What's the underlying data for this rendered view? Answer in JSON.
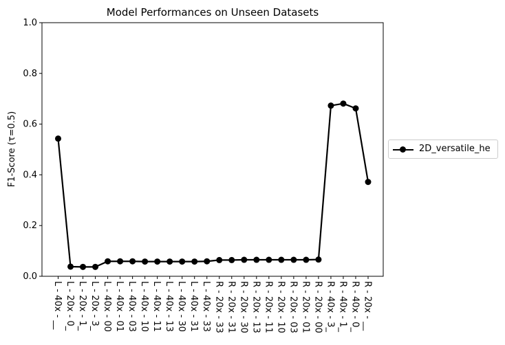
{
  "chart_data": {
    "type": "line",
    "title": "Model Performances on Unseen Datasets",
    "xlabel": "",
    "ylabel": "F1-Score  (τ=0.5)",
    "ylim": [
      0,
      1.0
    ],
    "yticks": [
      "0.0",
      "0.2",
      "0.4",
      "0.6",
      "0.8",
      "1.0"
    ],
    "grid": false,
    "legend_position": "outside-right",
    "categories": [
      "L - 40x - __",
      "L - 20x - 0_",
      "L - 20x - 1_",
      "L - 20x - 3_",
      "L - 40x - 00",
      "L - 40x - 01",
      "L - 40x - 03",
      "L - 40x - 10",
      "L - 40x - 11",
      "L - 40x - 13",
      "L - 40x - 30",
      "L - 40x - 31",
      "L - 40x - 33",
      "R - 20x - 33",
      "R - 20x - 31",
      "R - 20x - 30",
      "R - 20x - 13",
      "R - 20x - 11",
      "R - 20x - 10",
      "R - 20x - 03",
      "R - 20x - 01",
      "R - 20x - 00",
      "R - 40x - 3_",
      "R - 40x - 1_",
      "R - 40x - 0_",
      "R - 20x - __"
    ],
    "series": [
      {
        "name": "2D_versatile_he",
        "color": "#000000",
        "values": [
          0.543,
          0.038,
          0.037,
          0.037,
          0.059,
          0.059,
          0.059,
          0.058,
          0.058,
          0.058,
          0.058,
          0.058,
          0.059,
          0.064,
          0.064,
          0.065,
          0.065,
          0.065,
          0.065,
          0.065,
          0.065,
          0.066,
          0.673,
          0.681,
          0.662,
          0.372
        ]
      }
    ]
  }
}
